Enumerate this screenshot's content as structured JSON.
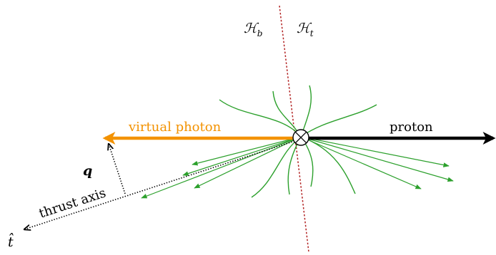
{
  "labels": {
    "hemisphere_beam": "ℋ",
    "hemisphere_beam_sub": "b",
    "hemisphere_target": "ℋ",
    "hemisphere_target_sub": "t",
    "virtual_photon": "virtual photon",
    "proton": "proton",
    "q_vector": "q",
    "thrust_axis": "thrust axis",
    "t_hat": "t̂"
  },
  "colors": {
    "photon": "#f39200",
    "proton": "#000000",
    "radiation": "#2ca02c",
    "divider": "#b22222",
    "text": "#000000"
  },
  "symbols": {
    "interaction_vertex": "circle-cross"
  }
}
